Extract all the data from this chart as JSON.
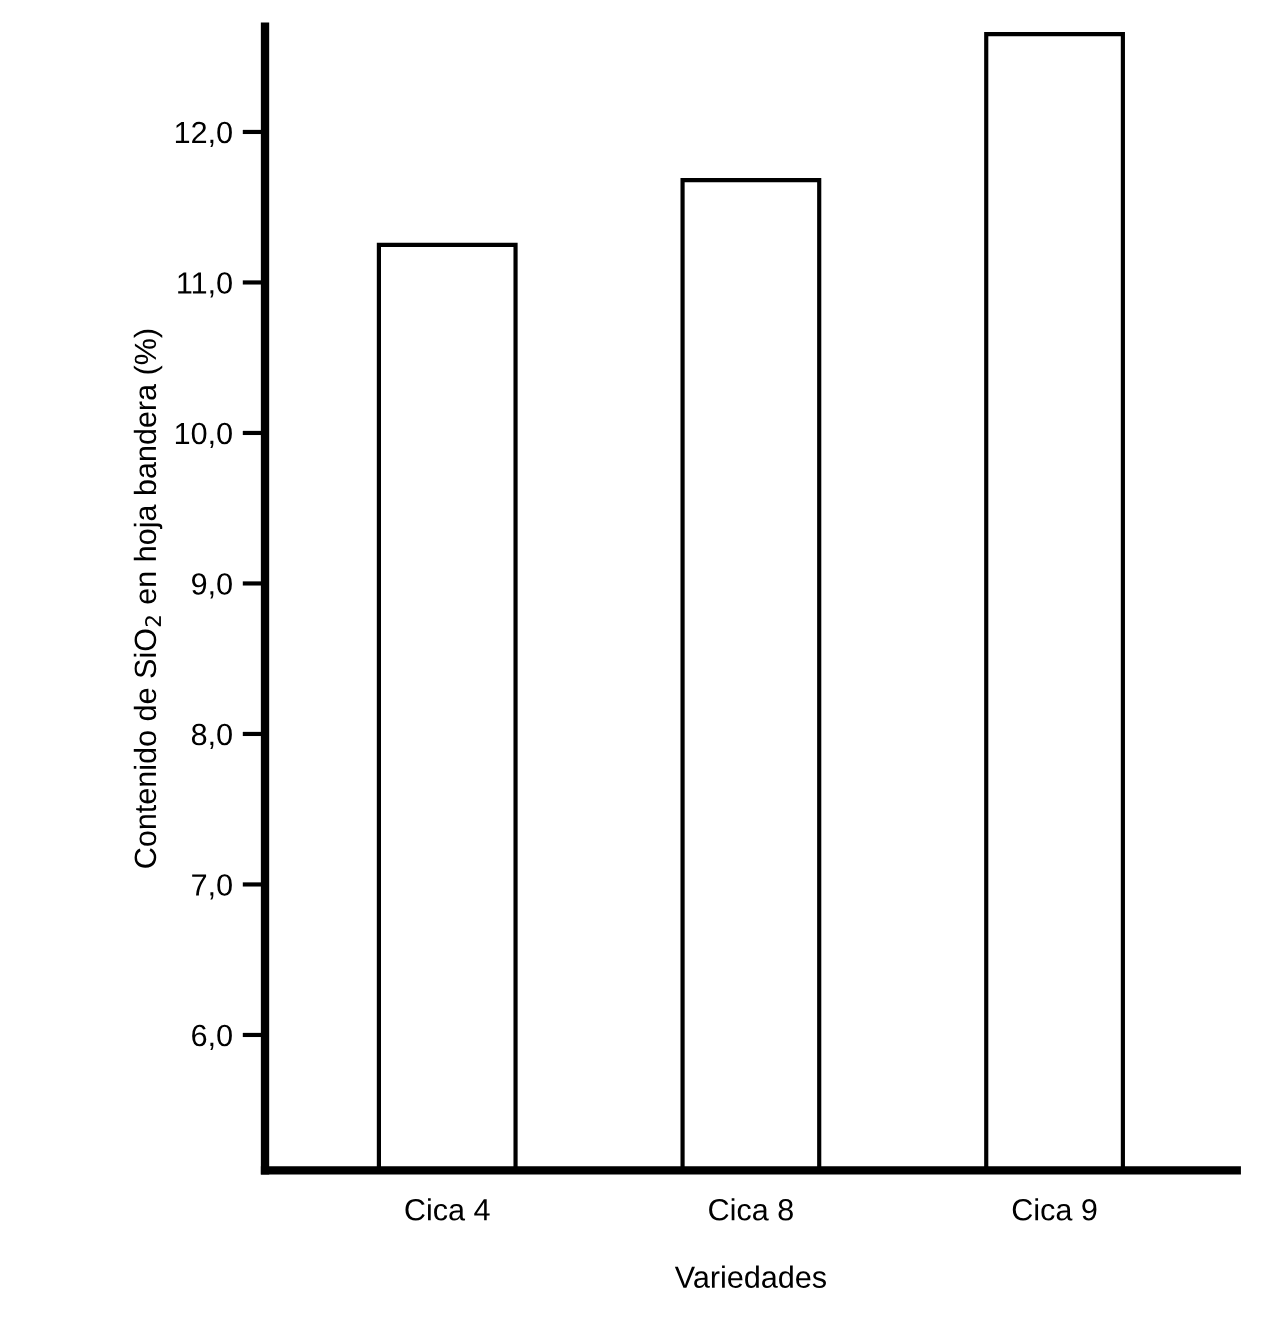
{
  "chart_data": {
    "type": "bar",
    "xlabel": "Variedades",
    "ylabel": "Contenido de SiO$_{2}$ en hoja bandera (%)",
    "categories": [
      "Cica 4",
      "Cica 8",
      "Cica 9"
    ],
    "values": [
      11.25,
      11.68,
      12.65
    ],
    "color": "#ffffff",
    "ylim": [
      5.1,
      12.7
    ],
    "yticks": [
      {
        "value": 6,
        "label": "6,0"
      },
      {
        "value": 7,
        "label": "7,0"
      },
      {
        "value": 8,
        "label": "8,0"
      },
      {
        "value": 9,
        "label": "9,0"
      },
      {
        "value": 10,
        "label": "10,0"
      },
      {
        "value": 11,
        "label": "11,0"
      },
      {
        "value": 12,
        "label": "12,0"
      }
    ],
    "grid": false
  }
}
